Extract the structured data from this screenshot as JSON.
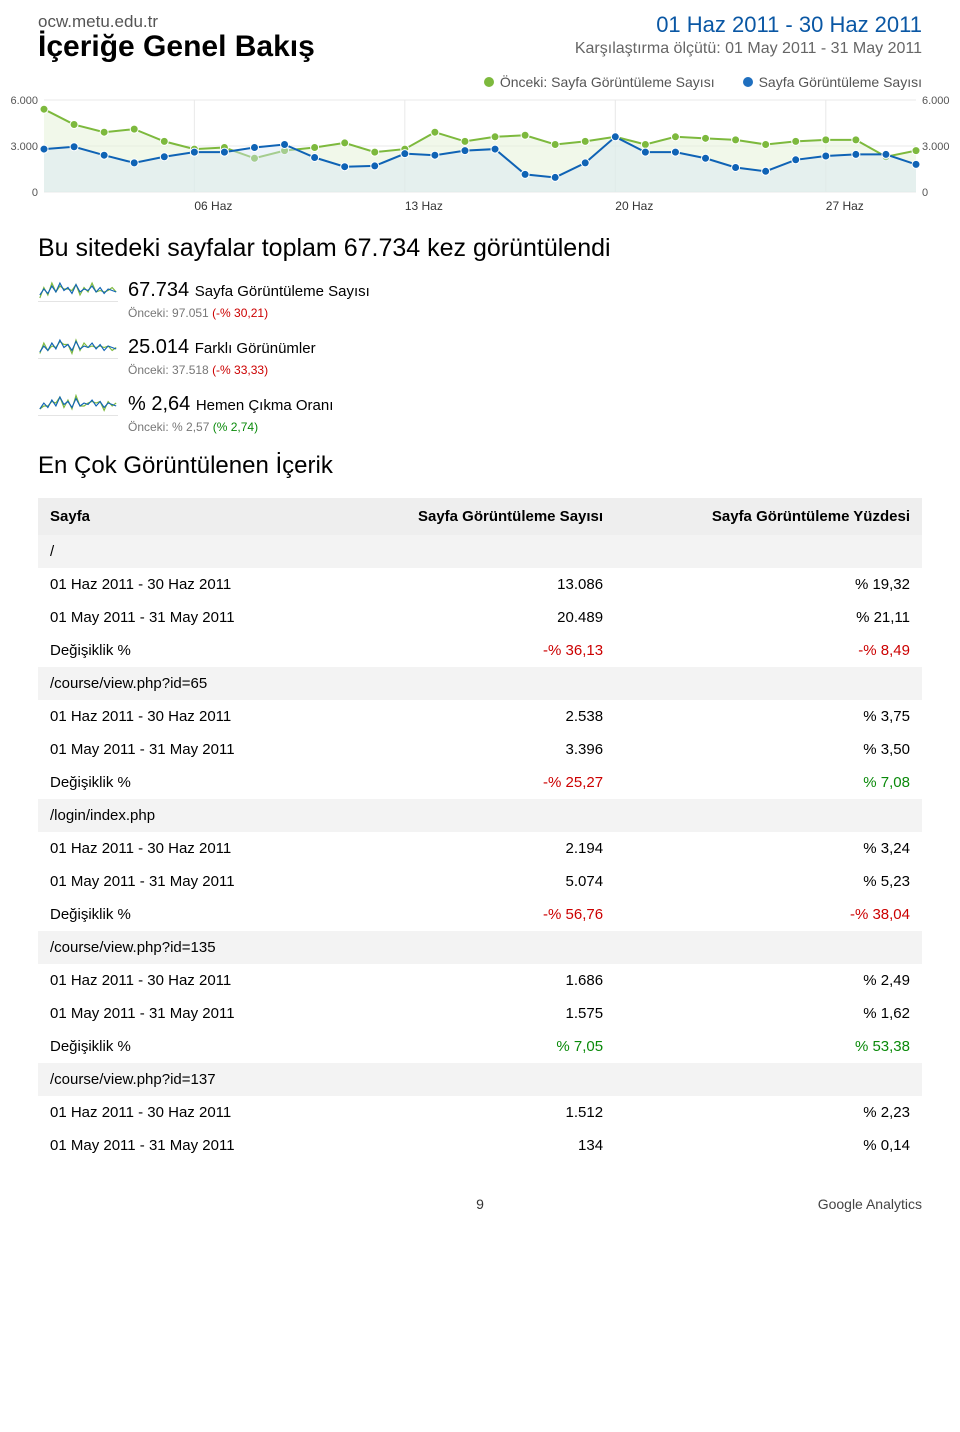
{
  "header": {
    "site_url": "ocw.metu.edu.tr",
    "page_title": "İçeriğe Genel Bakış",
    "date_range": "01 Haz 2011 - 30 Haz 2011",
    "compare_label": "Karşılaştırma ölçütü: 01 May 2011 - 31 May 2011"
  },
  "legend": {
    "prev": {
      "label": "Önceki: Sayfa Görüntüleme Sayısı",
      "color": "#7db93d"
    },
    "curr": {
      "label": "Sayfa Görüntüleme Sayısı",
      "color": "#1f6fbf"
    }
  },
  "main_chart": {
    "type": "line",
    "xlim": [
      1,
      30
    ],
    "ylim": [
      0,
      6000
    ],
    "yticks": [
      0,
      3000,
      6000
    ],
    "ytick_labels": [
      "0",
      "3.000",
      "6.000"
    ],
    "xticks": [
      6,
      13,
      20,
      27
    ],
    "xtick_labels": [
      "06 Haz",
      "13 Haz",
      "20 Haz",
      "27 Haz"
    ],
    "background_color": "#ffffff",
    "grid_color": "#e8e8e8",
    "line_width": 2,
    "marker_size": 4,
    "series_prev": {
      "color": "#7db93d",
      "fill_color": "#e6f2d8",
      "fill_opacity": 0.55,
      "values": [
        5400,
        4400,
        3900,
        4100,
        3300,
        2800,
        2900,
        2200,
        2700,
        2900,
        3200,
        2600,
        2800,
        3900,
        3300,
        3600,
        3700,
        3100,
        3300,
        3600,
        3100,
        3600,
        3500,
        3400,
        3100,
        3300,
        3400,
        3400,
        2300,
        2700
      ]
    },
    "series_curr": {
      "color": "#0f63b5",
      "fill_color": "#d6e6f4",
      "fill_opacity": 0.45,
      "values": [
        2800,
        2950,
        2400,
        1900,
        2300,
        2600,
        2600,
        2900,
        3100,
        2250,
        1650,
        1700,
        2500,
        2400,
        2700,
        2800,
        1150,
        950,
        1900,
        3600,
        2600,
        2600,
        2200,
        1600,
        1350,
        2100,
        2350,
        2450,
        2450,
        1800
      ]
    }
  },
  "summary": {
    "title_text": "Bu sitedeki sayfalar toplam 67.734 kez görüntülendi",
    "metrics": [
      {
        "value": "67.734",
        "label": "Sayfa Görüntüleme Sayısı",
        "prev_label": "Önceki: ",
        "prev_value": "97.051 ",
        "prev_delta": "(-% 30,21)",
        "prev_delta_class": "neg",
        "spark_color_a": "#0f63b5",
        "spark_color_b": "#7db93d"
      },
      {
        "value": "25.014",
        "label": "Farklı Görünümler",
        "prev_label": "Önceki: ",
        "prev_value": "37.518 ",
        "prev_delta": "(-% 33,33)",
        "prev_delta_class": "neg",
        "spark_color_a": "#0f63b5",
        "spark_color_b": "#7db93d"
      },
      {
        "value": "% 2,64",
        "label": "Hemen Çıkma Oranı",
        "prev_label": "Önceki: ",
        "prev_value": "% 2,57 ",
        "prev_delta": "(% 2,74)",
        "prev_delta_class": "pos",
        "spark_color_a": "#0f63b5",
        "spark_color_b": "#7db93d"
      }
    ]
  },
  "top_content": {
    "section_title": "En Çok Görüntülenen İçerik",
    "columns": [
      "Sayfa",
      "Sayfa Görüntüleme Sayısı",
      "Sayfa Görüntüleme Yüzdesi"
    ],
    "period_current_label": "01 Haz 2011 - 30 Haz 2011",
    "period_prev_label": "01 May 2011 - 31 May 2011",
    "change_label": "Değişiklik %",
    "groups": [
      {
        "page": "/",
        "current": {
          "views": "13.086",
          "pct": "% 19,32"
        },
        "prev": {
          "views": "20.489",
          "pct": "% 21,11"
        },
        "change": {
          "views": "-% 36,13",
          "views_class": "neg",
          "pct": "-% 8,49",
          "pct_class": "neg"
        }
      },
      {
        "page": "/course/view.php?id=65",
        "current": {
          "views": "2.538",
          "pct": "% 3,75"
        },
        "prev": {
          "views": "3.396",
          "pct": "% 3,50"
        },
        "change": {
          "views": "-% 25,27",
          "views_class": "neg",
          "pct": "% 7,08",
          "pct_class": "pos"
        }
      },
      {
        "page": "/login/index.php",
        "current": {
          "views": "2.194",
          "pct": "% 3,24"
        },
        "prev": {
          "views": "5.074",
          "pct": "% 5,23"
        },
        "change": {
          "views": "-% 56,76",
          "views_class": "neg",
          "pct": "-% 38,04",
          "pct_class": "neg"
        }
      },
      {
        "page": "/course/view.php?id=135",
        "current": {
          "views": "1.686",
          "pct": "% 2,49"
        },
        "prev": {
          "views": "1.575",
          "pct": "% 1,62"
        },
        "change": {
          "views": "% 7,05",
          "views_class": "pos",
          "pct": "% 53,38",
          "pct_class": "pos"
        }
      },
      {
        "page": "/course/view.php?id=137",
        "current": {
          "views": "1.512",
          "pct": "% 2,23"
        },
        "prev": {
          "views": "134",
          "pct": "% 0,14"
        },
        "change": null
      }
    ]
  },
  "footer": {
    "page_number": "9",
    "brand": "Google Analytics"
  }
}
